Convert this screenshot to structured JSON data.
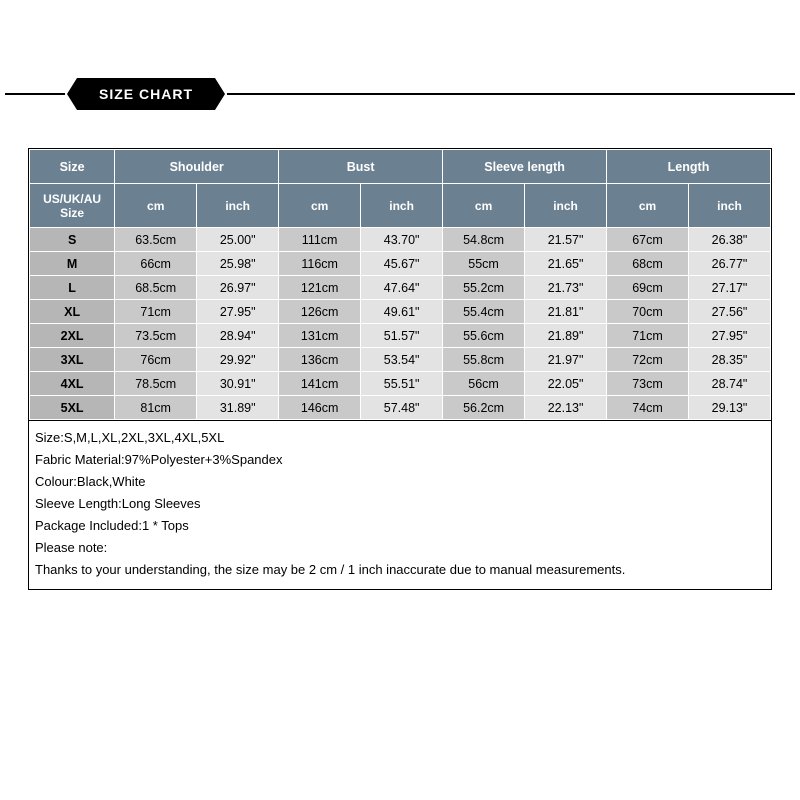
{
  "badge": {
    "title": "SIZE CHART"
  },
  "table": {
    "top_headers": [
      "Size",
      "Shoulder",
      "Bust",
      "Sleeve length",
      "Length"
    ],
    "sub_headers": {
      "size": "US/UK/AU\nSize",
      "cm": "cm",
      "inch": "inch"
    },
    "rows": [
      {
        "size": "S",
        "shoulder_cm": "63.5cm",
        "shoulder_in": "25.00\"",
        "bust_cm": "111cm",
        "bust_in": "43.70\"",
        "sleeve_cm": "54.8cm",
        "sleeve_in": "21.57\"",
        "length_cm": "67cm",
        "length_in": "26.38\""
      },
      {
        "size": "M",
        "shoulder_cm": "66cm",
        "shoulder_in": "25.98\"",
        "bust_cm": "116cm",
        "bust_in": "45.67\"",
        "sleeve_cm": "55cm",
        "sleeve_in": "21.65\"",
        "length_cm": "68cm",
        "length_in": "26.77\""
      },
      {
        "size": "L",
        "shoulder_cm": "68.5cm",
        "shoulder_in": "26.97\"",
        "bust_cm": "121cm",
        "bust_in": "47.64\"",
        "sleeve_cm": "55.2cm",
        "sleeve_in": "21.73\"",
        "length_cm": "69cm",
        "length_in": "27.17\""
      },
      {
        "size": "XL",
        "shoulder_cm": "71cm",
        "shoulder_in": "27.95\"",
        "bust_cm": "126cm",
        "bust_in": "49.61\"",
        "sleeve_cm": "55.4cm",
        "sleeve_in": "21.81\"",
        "length_cm": "70cm",
        "length_in": "27.56\""
      },
      {
        "size": "2XL",
        "shoulder_cm": "73.5cm",
        "shoulder_in": "28.94\"",
        "bust_cm": "131cm",
        "bust_in": "51.57\"",
        "sleeve_cm": "55.6cm",
        "sleeve_in": "21.89\"",
        "length_cm": "71cm",
        "length_in": "27.95\""
      },
      {
        "size": "3XL",
        "shoulder_cm": "76cm",
        "shoulder_in": "29.92\"",
        "bust_cm": "136cm",
        "bust_in": "53.54\"",
        "sleeve_cm": "55.8cm",
        "sleeve_in": "21.97\"",
        "length_cm": "72cm",
        "length_in": "28.35\""
      },
      {
        "size": "4XL",
        "shoulder_cm": "78.5cm",
        "shoulder_in": "30.91\"",
        "bust_cm": "141cm",
        "bust_in": "55.51\"",
        "sleeve_cm": "56cm",
        "sleeve_in": "22.05\"",
        "length_cm": "73cm",
        "length_in": "28.74\""
      },
      {
        "size": "5XL",
        "shoulder_cm": "81cm",
        "shoulder_in": "31.89\"",
        "bust_cm": "146cm",
        "bust_in": "57.48\"",
        "sleeve_cm": "56.2cm",
        "sleeve_in": "22.13\"",
        "length_cm": "74cm",
        "length_in": "29.13\""
      }
    ],
    "col_widths_pct": [
      11.5,
      11.06,
      11.06,
      11.06,
      11.06,
      11.06,
      11.06,
      11.06,
      11.06
    ],
    "colors": {
      "header_bg": "#6b8191",
      "header_fg": "#ffffff",
      "size_col_bg": "#b6b6b6",
      "cm_col_bg": "#c9c9c9",
      "inch_col_bg": "#e3e3e3",
      "grid_line": "#ffffff",
      "outer_border": "#000000"
    }
  },
  "notes": {
    "lines": [
      "Size:S,M,L,XL,2XL,3XL,4XL,5XL",
      "Fabric Material:97%Polyester+3%Spandex",
      "Colour:Black,White",
      "Sleeve Length:Long Sleeves",
      "Package Included:1 * Tops",
      "Please note:",
      "Thanks to your understanding, the size may be 2 cm / 1 inch inaccurate due to manual measurements."
    ]
  }
}
